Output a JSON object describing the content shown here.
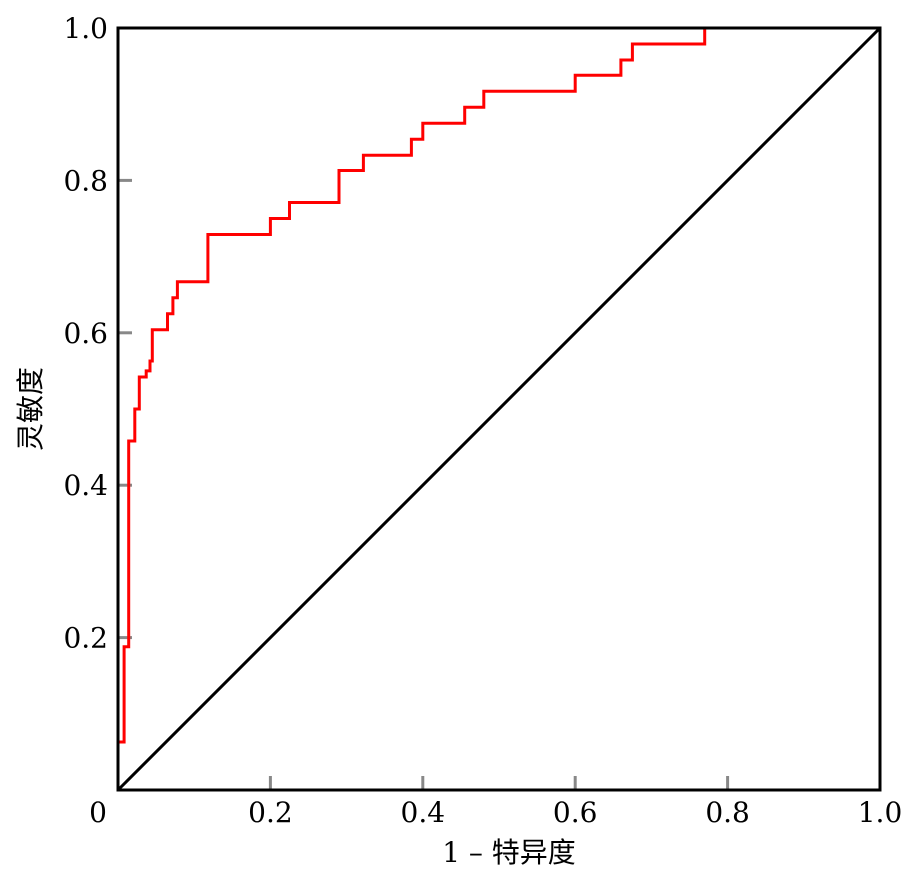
{
  "chart_data": {
    "type": "line",
    "title": "",
    "xlabel": "1 – 特异度",
    "ylabel": "灵敏度",
    "xlim": [
      0,
      1
    ],
    "ylim": [
      0,
      1
    ],
    "grid": false,
    "x_ticks": [
      "0",
      "0.2",
      "0.4",
      "0.6",
      "0.8",
      "1.0"
    ],
    "y_ticks": [
      "0.2",
      "0.4",
      "0.6",
      "0.8",
      "1.0"
    ],
    "colors": {
      "roc": "#ff0000",
      "reference": "#000000"
    },
    "series": [
      {
        "style": "step",
        "points": [
          [
            0.0,
            0.0
          ],
          [
            0.0,
            0.063
          ],
          [
            0.008,
            0.063
          ],
          [
            0.008,
            0.188
          ],
          [
            0.014,
            0.188
          ],
          [
            0.014,
            0.458
          ],
          [
            0.022,
            0.458
          ],
          [
            0.022,
            0.5
          ],
          [
            0.028,
            0.5
          ],
          [
            0.028,
            0.542
          ],
          [
            0.037,
            0.542
          ],
          [
            0.037,
            0.55
          ],
          [
            0.042,
            0.55
          ],
          [
            0.042,
            0.563
          ],
          [
            0.045,
            0.563
          ],
          [
            0.045,
            0.604
          ],
          [
            0.065,
            0.604
          ],
          [
            0.065,
            0.625
          ],
          [
            0.072,
            0.625
          ],
          [
            0.072,
            0.646
          ],
          [
            0.078,
            0.646
          ],
          [
            0.078,
            0.667
          ],
          [
            0.118,
            0.667
          ],
          [
            0.118,
            0.729
          ],
          [
            0.2,
            0.729
          ],
          [
            0.2,
            0.75
          ],
          [
            0.225,
            0.75
          ],
          [
            0.225,
            0.771
          ],
          [
            0.29,
            0.771
          ],
          [
            0.29,
            0.813
          ],
          [
            0.322,
            0.813
          ],
          [
            0.322,
            0.833
          ],
          [
            0.385,
            0.833
          ],
          [
            0.385,
            0.854
          ],
          [
            0.4,
            0.854
          ],
          [
            0.4,
            0.875
          ],
          [
            0.455,
            0.875
          ],
          [
            0.455,
            0.896
          ],
          [
            0.48,
            0.896
          ],
          [
            0.48,
            0.917
          ],
          [
            0.6,
            0.917
          ],
          [
            0.6,
            0.938
          ],
          [
            0.66,
            0.938
          ],
          [
            0.66,
            0.958
          ],
          [
            0.675,
            0.958
          ],
          [
            0.675,
            0.979
          ],
          [
            0.77,
            0.979
          ],
          [
            0.77,
            1.0
          ],
          [
            1.0,
            1.0
          ]
        ]
      },
      {
        "style": "line",
        "points": [
          [
            0,
            0
          ],
          [
            1,
            1
          ]
        ]
      }
    ]
  }
}
